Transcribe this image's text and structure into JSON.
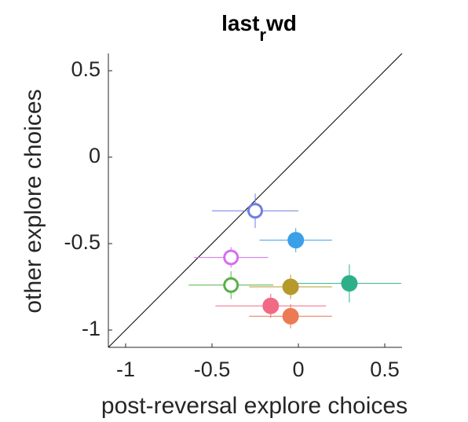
{
  "chart_data": {
    "type": "scatter",
    "title": "last",
    "title_subscript": "r",
    "title_suffix": "wd",
    "x_label": "post-reversal explore choices",
    "y_label": "other explore choices",
    "x": [
      -0.25,
      -0.015,
      -0.39,
      -0.39,
      -0.045,
      0.295,
      -0.16,
      -0.045
    ],
    "y": [
      -0.31,
      -0.48,
      -0.58,
      -0.74,
      -0.75,
      -0.73,
      -0.86,
      -0.92
    ],
    "xerr": [
      0.25,
      0.21,
      0.215,
      0.245,
      0.24,
      0.3,
      0.32,
      0.24
    ],
    "yerr": [
      0.1,
      0.07,
      0.06,
      0.08,
      0.07,
      0.11,
      0.07,
      0.07
    ],
    "colors": [
      "#6f7fe0",
      "#3aa0e8",
      "#d56ef0",
      "#58b04a",
      "#b59a2b",
      "#2db08a",
      "#f06a85",
      "#ec7a55"
    ],
    "filled": [
      false,
      true,
      false,
      false,
      true,
      true,
      true,
      true
    ],
    "xlim": [
      -1.1,
      0.6
    ],
    "ylim": [
      -1.1,
      0.6
    ],
    "xticks": [
      -1,
      -0.5,
      0,
      0.5
    ],
    "yticks": [
      -1,
      -0.5,
      0,
      0.5
    ],
    "identity_line": true
  }
}
